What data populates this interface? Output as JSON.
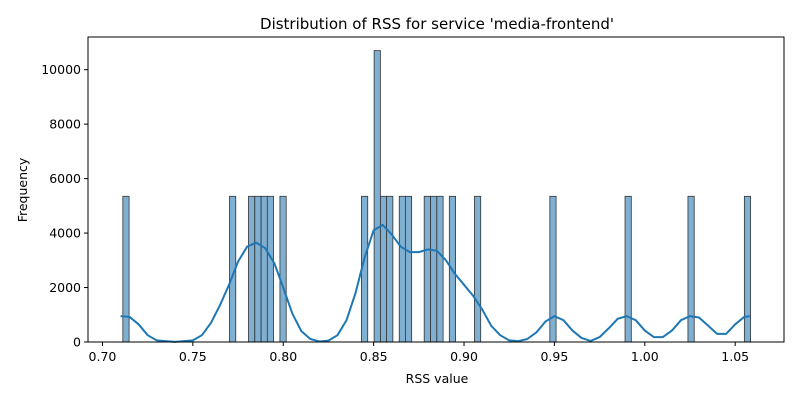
{
  "chart_data": {
    "type": "bar",
    "title": "Distribution of RSS for service 'media-frontend'",
    "xlabel": "RSS value",
    "ylabel": "Frequency",
    "xlim": [
      0.692,
      1.077
    ],
    "ylim": [
      0,
      11200
    ],
    "xticks": [
      0.7,
      0.75,
      0.8,
      0.85,
      0.9,
      0.95,
      1.0,
      1.05
    ],
    "xtick_labels": [
      "0.70",
      "0.75",
      "0.80",
      "0.85",
      "0.90",
      "0.95",
      "1.00",
      "1.05"
    ],
    "yticks": [
      0,
      2000,
      4000,
      6000,
      8000,
      10000
    ],
    "ytick_labels": [
      "0",
      "2000",
      "4000",
      "6000",
      "8000",
      "10000"
    ],
    "bin_width": 0.00347,
    "bars": [
      {
        "x": 0.713,
        "count": 5350
      },
      {
        "x": 0.772,
        "count": 5350
      },
      {
        "x": 0.7825,
        "count": 5350
      },
      {
        "x": 0.786,
        "count": 5350
      },
      {
        "x": 0.7895,
        "count": 5350
      },
      {
        "x": 0.7929,
        "count": 5350
      },
      {
        "x": 0.7999,
        "count": 5350
      },
      {
        "x": 0.845,
        "count": 5350
      },
      {
        "x": 0.852,
        "count": 10700
      },
      {
        "x": 0.8555,
        "count": 5350
      },
      {
        "x": 0.8589,
        "count": 5350
      },
      {
        "x": 0.8659,
        "count": 5350
      },
      {
        "x": 0.8693,
        "count": 5350
      },
      {
        "x": 0.8797,
        "count": 5350
      },
      {
        "x": 0.8832,
        "count": 5350
      },
      {
        "x": 0.8867,
        "count": 5350
      },
      {
        "x": 0.8936,
        "count": 5350
      },
      {
        "x": 0.9075,
        "count": 5350
      },
      {
        "x": 0.9492,
        "count": 5350
      },
      {
        "x": 0.9908,
        "count": 5350
      },
      {
        "x": 1.0256,
        "count": 5350
      },
      {
        "x": 1.0568,
        "count": 5350
      }
    ],
    "kde": {
      "x": [
        0.71,
        0.715,
        0.72,
        0.725,
        0.73,
        0.74,
        0.75,
        0.755,
        0.76,
        0.765,
        0.77,
        0.775,
        0.78,
        0.785,
        0.79,
        0.795,
        0.8,
        0.805,
        0.81,
        0.815,
        0.82,
        0.825,
        0.83,
        0.835,
        0.84,
        0.845,
        0.85,
        0.855,
        0.86,
        0.865,
        0.87,
        0.875,
        0.88,
        0.885,
        0.89,
        0.895,
        0.9,
        0.905,
        0.91,
        0.915,
        0.92,
        0.925,
        0.93,
        0.935,
        0.94,
        0.945,
        0.95,
        0.955,
        0.96,
        0.965,
        0.97,
        0.975,
        0.98,
        0.985,
        0.99,
        0.995,
        1.0,
        1.005,
        1.01,
        1.015,
        1.02,
        1.025,
        1.03,
        1.035,
        1.04,
        1.045,
        1.05,
        1.055,
        1.058
      ],
      "y": [
        950,
        920,
        650,
        250,
        60,
        5,
        60,
        250,
        700,
        1350,
        2100,
        2950,
        3500,
        3650,
        3450,
        2900,
        2000,
        1050,
        400,
        110,
        20,
        50,
        250,
        800,
        1800,
        3100,
        4100,
        4300,
        3950,
        3500,
        3300,
        3300,
        3400,
        3350,
        3000,
        2500,
        2100,
        1700,
        1200,
        600,
        250,
        60,
        30,
        110,
        350,
        750,
        950,
        800,
        420,
        150,
        40,
        180,
        500,
        850,
        950,
        800,
        420,
        180,
        180,
        420,
        800,
        950,
        900,
        600,
        300,
        300,
        650,
        920,
        950
      ]
    },
    "colors": {
      "bar_fill": "#7fafd1",
      "bar_edge": "#333333",
      "kde_line": "#1f77b4"
    },
    "grid": false,
    "legend": "none"
  }
}
